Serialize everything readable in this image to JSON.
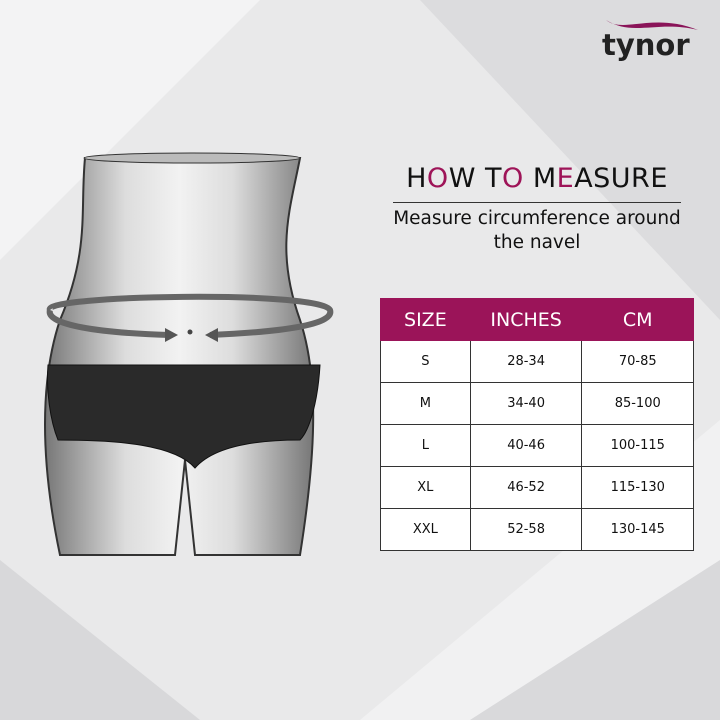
{
  "brand": {
    "logo_text": "tynor",
    "accent": "#9b1459"
  },
  "heading": {
    "parts": [
      {
        "text": "H",
        "accent": false
      },
      {
        "text": "O",
        "accent": true
      },
      {
        "text": "W T",
        "accent": false
      },
      {
        "text": "O",
        "accent": true
      },
      {
        "text": " M",
        "accent": false
      },
      {
        "text": "E",
        "accent": true
      },
      {
        "text": "ASURE",
        "accent": false
      }
    ]
  },
  "subtitle": "Measure circumference around the navel",
  "table": {
    "headers": [
      "SIZE",
      "INCHES",
      "CM"
    ],
    "rows": [
      [
        "S",
        "28-34",
        "70-85"
      ],
      [
        "M",
        "34-40",
        "85-100"
      ],
      [
        "L",
        "40-46",
        "100-115"
      ],
      [
        "XL",
        "46-52",
        "115-130"
      ],
      [
        "XXL",
        "52-58",
        "130-145"
      ]
    ]
  }
}
